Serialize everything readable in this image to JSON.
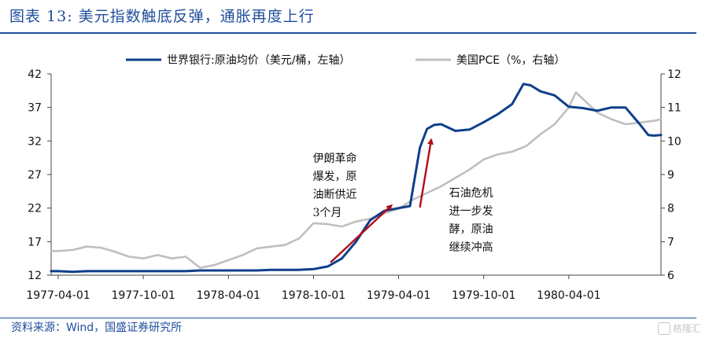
{
  "header": {
    "title": "图表 13:  美元指数触底反弹，通胀再度上行"
  },
  "footer": {
    "source": "资料来源：Wind，国盛证券研究所",
    "watermark": "格隆汇"
  },
  "chart_data": {
    "type": "line",
    "title": "图表 13:  美元指数触底反弹，通胀再度上行",
    "x_tick_labels": [
      "1977-04-01",
      "1977-10-01",
      "1978-04-01",
      "1978-10-01",
      "1979-04-01",
      "1979-10-01",
      "1980-04-01"
    ],
    "x_ticks_month_index": [
      0,
      6,
      12,
      18,
      24,
      30,
      36
    ],
    "y_left": {
      "ticks": [
        12,
        17,
        22,
        27,
        32,
        37,
        42
      ],
      "lim": [
        12,
        42
      ]
    },
    "y_right": {
      "ticks": [
        6,
        7,
        8,
        9,
        10,
        11,
        12
      ],
      "lim": [
        6,
        12
      ]
    },
    "legend_position": "top",
    "grid": false,
    "series": [
      {
        "name": "世界银行:原油均价（美元/桶，左轴）",
        "axis": "left",
        "color": "#0f3f8c",
        "points": [
          [
            -0.5,
            12.6
          ],
          [
            0,
            12.6
          ],
          [
            1,
            12.5
          ],
          [
            2,
            12.6
          ],
          [
            3,
            12.6
          ],
          [
            4,
            12.6
          ],
          [
            5,
            12.6
          ],
          [
            6,
            12.6
          ],
          [
            7,
            12.6
          ],
          [
            8,
            12.6
          ],
          [
            9,
            12.6
          ],
          [
            10,
            12.7
          ],
          [
            11,
            12.7
          ],
          [
            12,
            12.7
          ],
          [
            13,
            12.7
          ],
          [
            14,
            12.7
          ],
          [
            15,
            12.8
          ],
          [
            16,
            12.8
          ],
          [
            17,
            12.8
          ],
          [
            18,
            12.9
          ],
          [
            19,
            13.3
          ],
          [
            20,
            14.5
          ],
          [
            21,
            17
          ],
          [
            22,
            20.2
          ],
          [
            23,
            21.6
          ],
          [
            24,
            22
          ],
          [
            24.8,
            22.3
          ],
          [
            25.5,
            31
          ],
          [
            26,
            33.8
          ],
          [
            26.5,
            34.4
          ],
          [
            27,
            34.5
          ],
          [
            28,
            33.5
          ],
          [
            29,
            33.7
          ],
          [
            30,
            34.8
          ],
          [
            31,
            36
          ],
          [
            32,
            37.5
          ],
          [
            32.8,
            40.5
          ],
          [
            33.3,
            40.3
          ],
          [
            34,
            39.4
          ],
          [
            35,
            38.8
          ],
          [
            36,
            37.1
          ],
          [
            37,
            36.9
          ],
          [
            38,
            36.5
          ],
          [
            39,
            37
          ],
          [
            40,
            37
          ],
          [
            41,
            34.5
          ],
          [
            41.6,
            32.9
          ],
          [
            42,
            32.8
          ],
          [
            42.5,
            32.9
          ]
        ]
      },
      {
        "name": "美国PCE（%，右轴）",
        "axis": "right",
        "color": "#bfbfbf",
        "points": [
          [
            -0.5,
            6.72
          ],
          [
            0,
            6.72
          ],
          [
            1,
            6.75
          ],
          [
            2,
            6.85
          ],
          [
            3,
            6.82
          ],
          [
            4,
            6.7
          ],
          [
            5,
            6.55
          ],
          [
            6,
            6.5
          ],
          [
            7,
            6.6
          ],
          [
            8,
            6.5
          ],
          [
            9,
            6.55
          ],
          [
            10,
            6.22
          ],
          [
            11,
            6.3
          ],
          [
            12,
            6.45
          ],
          [
            13,
            6.6
          ],
          [
            14,
            6.8
          ],
          [
            15,
            6.85
          ],
          [
            16,
            6.9
          ],
          [
            17,
            7.1
          ],
          [
            18,
            7.55
          ],
          [
            19,
            7.52
          ],
          [
            20,
            7.45
          ],
          [
            21,
            7.6
          ],
          [
            22,
            7.68
          ],
          [
            23,
            7.85
          ],
          [
            24,
            7.98
          ],
          [
            25,
            8.25
          ],
          [
            26,
            8.45
          ],
          [
            27,
            8.65
          ],
          [
            28,
            8.9
          ],
          [
            29,
            9.15
          ],
          [
            30,
            9.45
          ],
          [
            31,
            9.6
          ],
          [
            32,
            9.68
          ],
          [
            33,
            9.85
          ],
          [
            34,
            10.2
          ],
          [
            35,
            10.5
          ],
          [
            36,
            11.0
          ],
          [
            36.5,
            11.45
          ],
          [
            37,
            11.25
          ],
          [
            38,
            10.85
          ],
          [
            39,
            10.65
          ],
          [
            40,
            10.5
          ],
          [
            41,
            10.55
          ],
          [
            42,
            10.6
          ],
          [
            42.5,
            10.65
          ]
        ]
      }
    ],
    "annotations": [
      {
        "lines": [
          "伊朗革命",
          "爆发，原",
          "油断供近",
          "3个月"
        ],
        "anchor_month": 21,
        "anchor_left": 25
      },
      {
        "lines": [
          "石油危机",
          "进一步发",
          "酵，原油",
          "继续冲高"
        ],
        "anchor_month": 27,
        "anchor_left": 22
      }
    ],
    "arrows": [
      {
        "color": "#b30d17",
        "from": [
          19.2,
          13.9
        ],
        "to": [
          23.5,
          22.4
        ]
      },
      {
        "color": "#b30d17",
        "from": [
          25.5,
          22.1
        ],
        "to": [
          26.3,
          32.2
        ]
      }
    ]
  }
}
